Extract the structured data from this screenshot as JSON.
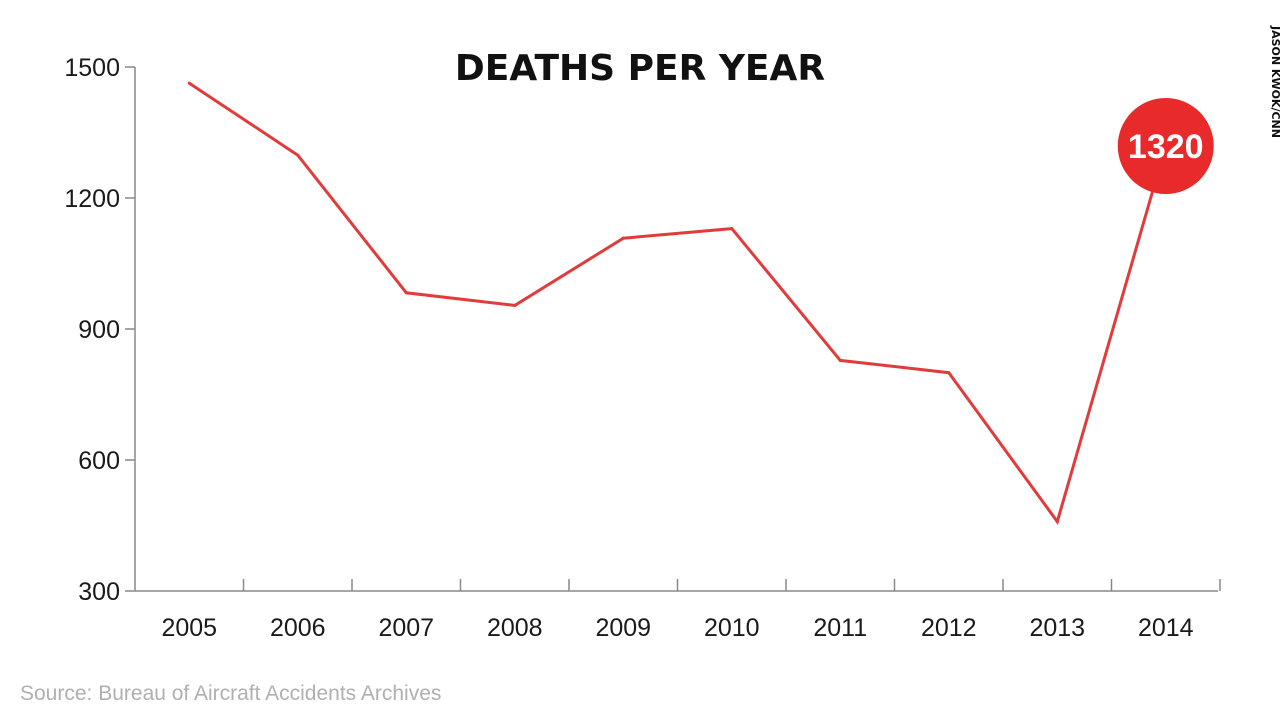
{
  "chart_data": {
    "type": "line",
    "title": "DEATHS PER YEAR",
    "xlabel": "",
    "ylabel": "",
    "categories": [
      "2005",
      "2006",
      "2007",
      "2008",
      "2009",
      "2010",
      "2011",
      "2012",
      "2013",
      "2014"
    ],
    "series": [
      {
        "values": [
          1463,
          1298,
          983,
          954,
          1108,
          1130,
          828,
          800,
          459,
          1320
        ]
      }
    ],
    "ylim": [
      300,
      1500
    ],
    "yticks": [
      "1500",
      "1200",
      "900",
      "600",
      "300"
    ],
    "grid": false,
    "line_color": "#e03c3c",
    "callout": {
      "label": "1320",
      "category": "2014",
      "color": "#e82a2a"
    },
    "source": "Source: Bureau of Aircraft Accidents Archives",
    "credit": "JASON KWOK/CNN"
  }
}
